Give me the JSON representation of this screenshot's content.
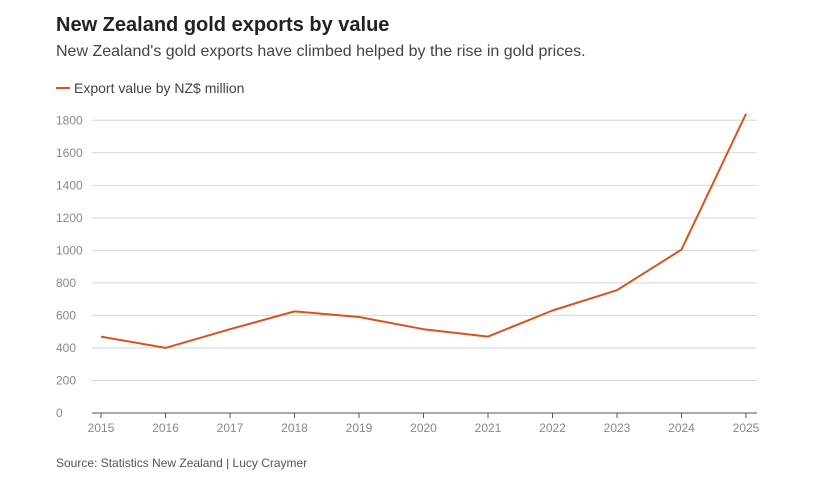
{
  "chart_data": {
    "type": "line",
    "title": "New Zealand gold exports by value",
    "subtitle": "New Zealand's gold exports have climbed helped by the rise in gold prices.",
    "x": [
      "2015",
      "2016",
      "2017",
      "2018",
      "2019",
      "2020",
      "2021",
      "2022",
      "2023",
      "2024",
      "2025"
    ],
    "series": [
      {
        "name": "Export value by NZ$ million",
        "color": "#d9531e",
        "values": [
          470,
          400,
          515,
          625,
          590,
          515,
          470,
          630,
          755,
          1005,
          1840
        ]
      }
    ],
    "y_ticks": [
      "0",
      "200",
      "400",
      "600",
      "800",
      "1000",
      "1200",
      "1400",
      "1600",
      "1800"
    ],
    "ylim": [
      0,
      1900
    ],
    "grid": true,
    "legend_position": "top-left",
    "source": "Source: Statistics New Zealand | Lucy Craymer"
  }
}
